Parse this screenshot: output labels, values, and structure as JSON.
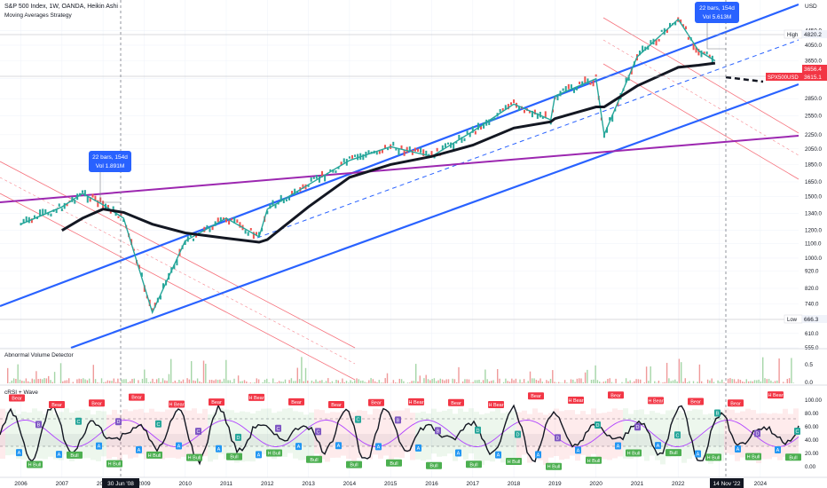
{
  "header": {
    "title": "S&P 500 Index, 1W, OANDA, Heikin Ashi",
    "strategy": "Moving Averages Strategy"
  },
  "axis": {
    "currency": "USD",
    "price_ticks": [
      "4450.0",
      "4050.0",
      "3650.0",
      "3250.0",
      "2850.0",
      "2550.0",
      "2250.0",
      "2050.0",
      "1850.0",
      "1650.0",
      "1500.0",
      "1340.0",
      "1200.0",
      "1100.0",
      "1000.0",
      "920.0",
      "820.0",
      "740.0",
      "610.0",
      "555.0"
    ],
    "years": [
      "2006",
      "2007",
      "2008",
      "2009",
      "2010",
      "2011",
      "2012",
      "2013",
      "2014",
      "2015",
      "2016",
      "2017",
      "2018",
      "2019",
      "2020",
      "2021",
      "2022",
      "2023",
      "2024"
    ],
    "date_marker_left": "30 Jun '08",
    "date_marker_right": "14 Nov '22"
  },
  "price_labels": {
    "high_label": "High",
    "high_value": "4820.2",
    "low_label": "Low",
    "low_value": "666.3",
    "price_a": "3656.4",
    "symbol": "SPX500USD",
    "price_b": "3615.1"
  },
  "measure_left": {
    "line1": "22 bars, 154d",
    "line2": "Vol 1.891M"
  },
  "measure_right": {
    "line1": "22 bars, 154d",
    "line2": "Vol 5.613M"
  },
  "volume_panel": {
    "title": "Abnormal Volume Detector",
    "ticks": [
      "0.5",
      "0.0"
    ]
  },
  "rsi_panel": {
    "title": "cRSI + Wave",
    "ticks": [
      "100.00",
      "80.00",
      "60.00",
      "40.00",
      "20.00",
      "0.00"
    ],
    "signals": [
      "Bear",
      "H Bear",
      "Bull",
      "H Bull",
      "A",
      "B",
      "C",
      "D"
    ]
  },
  "colors": {
    "channel_blue": "#2962ff",
    "trend_purple": "#9c27b0",
    "ma_black": "#131722",
    "up_candle": "#26a69a",
    "down_candle": "#ef5350",
    "bear_tag": "#f23645",
    "bull_tag": "#4caf50",
    "a_tag": "#2196f3",
    "price_tag": "#f23645"
  },
  "chart_data": {
    "type": "line",
    "title": "S&P 500 Index, 1W, OANDA, Heikin Ashi",
    "price_scale": "log",
    "ylim": [
      555,
      5200
    ],
    "x": [
      "2006",
      "2007",
      "2007.5",
      "2008",
      "2008.5",
      "2009.2",
      "2010",
      "2011",
      "2011.8",
      "2012",
      "2013",
      "2014",
      "2015",
      "2016",
      "2017",
      "2018",
      "2018.9",
      "2019",
      "2020",
      "2020.2",
      "2021",
      "2022",
      "2022.5",
      "2022.9"
    ],
    "series": [
      {
        "name": "S&P 500",
        "values": [
          1250,
          1400,
          1530,
          1420,
          1300,
          700,
          1120,
          1300,
          1150,
          1380,
          1620,
          1900,
          2080,
          1950,
          2300,
          2750,
          2480,
          2900,
          3250,
          2250,
          3750,
          4800,
          3900,
          3656
        ]
      },
      {
        "values": [
          null,
          1200,
          1300,
          1380,
          1350,
          1250,
          1180,
          1140,
          1110,
          1130,
          1400,
          1700,
          1850,
          1950,
          2100,
          2350,
          2450,
          2500,
          2700,
          2700,
          3100,
          3500,
          3550,
          3600
        ]
      }
    ],
    "high": 4820.2,
    "low": 666.3,
    "last": 3615.1
  }
}
